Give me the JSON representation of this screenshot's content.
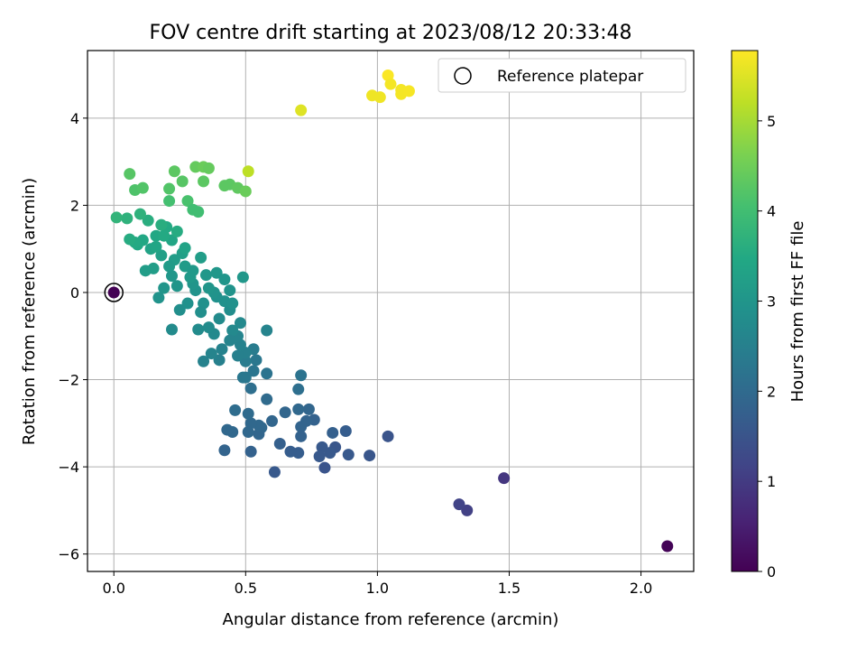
{
  "chart_data": {
    "type": "scatter",
    "title": "FOV centre drift starting at 2023/08/12 20:33:48",
    "xlabel": "Angular distance from reference (arcmin)",
    "ylabel": "Rotation from reference (arcmin)",
    "xlim": [
      -0.1,
      2.2
    ],
    "ylim": [
      -6.4,
      5.55
    ],
    "xticks": [
      0.0,
      0.5,
      1.0,
      1.5,
      2.0
    ],
    "xtick_labels": [
      "0.0",
      "0.5",
      "1.0",
      "1.5",
      "2.0"
    ],
    "yticks": [
      -6,
      -4,
      -2,
      0,
      2,
      4
    ],
    "ytick_labels": [
      "−6",
      "−4",
      "−2",
      "0",
      "2",
      "4"
    ],
    "grid": true,
    "legend": {
      "placement": "top-right",
      "entries": [
        "Reference platepar"
      ]
    },
    "colorbar": {
      "label": "Hours from first FF file",
      "colormap": "viridis",
      "range": [
        0,
        5.78
      ],
      "ticks": [
        0,
        1,
        2,
        3,
        4,
        5
      ],
      "tick_labels": [
        "0",
        "1",
        "2",
        "3",
        "4",
        "5"
      ]
    },
    "reference_point": {
      "x": 0.0,
      "y": 0.0,
      "c": 0.0
    },
    "points": [
      [
        2.1,
        -5.82,
        0.05
      ],
      [
        1.48,
        -4.26,
        0.9
      ],
      [
        1.34,
        -5.0,
        1.1
      ],
      [
        1.31,
        -4.86,
        1.15
      ],
      [
        1.04,
        -3.3,
        1.5
      ],
      [
        0.97,
        -3.74,
        1.55
      ],
      [
        0.89,
        -3.72,
        1.6
      ],
      [
        0.88,
        -3.18,
        1.7
      ],
      [
        0.84,
        -3.55,
        1.55
      ],
      [
        0.83,
        -3.22,
        1.75
      ],
      [
        0.82,
        -3.68,
        1.6
      ],
      [
        0.8,
        -4.02,
        1.5
      ],
      [
        0.79,
        -3.55,
        1.6
      ],
      [
        0.78,
        -3.76,
        1.6
      ],
      [
        0.76,
        -2.92,
        1.8
      ],
      [
        0.74,
        -2.68,
        1.9
      ],
      [
        0.73,
        -2.95,
        1.85
      ],
      [
        0.71,
        -3.08,
        1.85
      ],
      [
        0.71,
        -3.3,
        1.8
      ],
      [
        0.7,
        -3.68,
        1.7
      ],
      [
        0.7,
        -2.68,
        1.95
      ],
      [
        0.7,
        -2.22,
        2.1
      ],
      [
        0.71,
        -1.9,
        2.2
      ],
      [
        0.67,
        -3.65,
        1.7
      ],
      [
        0.65,
        -2.75,
        1.9
      ],
      [
        0.63,
        -3.47,
        1.75
      ],
      [
        0.61,
        -4.12,
        1.6
      ],
      [
        0.6,
        -2.95,
        1.9
      ],
      [
        0.58,
        -2.45,
        2.0
      ],
      [
        0.58,
        -1.86,
        2.2
      ],
      [
        0.58,
        -0.87,
        2.6
      ],
      [
        0.56,
        -3.1,
        1.95
      ],
      [
        0.55,
        -3.25,
        1.9
      ],
      [
        0.55,
        -3.05,
        1.95
      ],
      [
        0.54,
        -1.55,
        2.3
      ],
      [
        0.53,
        -1.3,
        2.4
      ],
      [
        0.53,
        -1.8,
        2.25
      ],
      [
        0.52,
        -2.2,
        2.1
      ],
      [
        0.52,
        -3.0,
        1.95
      ],
      [
        0.52,
        -3.65,
        1.8
      ],
      [
        0.51,
        -2.78,
        2.0
      ],
      [
        0.51,
        -3.2,
        1.95
      ],
      [
        0.5,
        -1.58,
        2.4
      ],
      [
        0.5,
        -1.38,
        2.5
      ],
      [
        0.5,
        -1.95,
        2.3
      ],
      [
        0.49,
        -1.95,
        2.3
      ],
      [
        0.48,
        -0.7,
        2.7
      ],
      [
        0.48,
        -1.2,
        2.55
      ],
      [
        0.47,
        -1.45,
        2.5
      ],
      [
        0.47,
        -1.0,
        2.6
      ],
      [
        0.46,
        -2.7,
        2.05
      ],
      [
        0.45,
        -3.2,
        1.95
      ],
      [
        0.45,
        -0.87,
        2.7
      ],
      [
        0.44,
        -0.4,
        2.8
      ],
      [
        0.44,
        -1.1,
        2.6
      ],
      [
        0.43,
        -3.15,
        1.95
      ],
      [
        0.42,
        -3.62,
        1.85
      ],
      [
        0.42,
        -0.2,
        2.9
      ],
      [
        0.41,
        -1.3,
        2.55
      ],
      [
        0.4,
        -0.6,
        2.75
      ],
      [
        0.4,
        -1.55,
        2.5
      ],
      [
        0.39,
        -0.1,
        2.9
      ],
      [
        0.38,
        0.0,
        2.95
      ],
      [
        0.38,
        -0.95,
        2.7
      ],
      [
        0.37,
        -1.4,
        2.6
      ],
      [
        0.36,
        -0.8,
        2.75
      ],
      [
        0.35,
        0.4,
        3.05
      ],
      [
        0.34,
        -0.25,
        2.9
      ],
      [
        0.34,
        -1.58,
        2.55
      ],
      [
        0.33,
        -0.45,
        2.85
      ],
      [
        0.32,
        -0.85,
        2.75
      ],
      [
        0.31,
        0.05,
        2.95
      ],
      [
        0.3,
        0.2,
        3.0
      ],
      [
        0.29,
        0.35,
        3.1
      ],
      [
        0.28,
        -0.25,
        2.9
      ],
      [
        0.27,
        0.6,
        3.15
      ],
      [
        0.26,
        0.9,
        3.25
      ],
      [
        0.25,
        -0.4,
        2.85
      ],
      [
        0.24,
        0.15,
        3.0
      ],
      [
        0.23,
        0.75,
        3.2
      ],
      [
        0.22,
        -0.85,
        2.75
      ],
      [
        0.22,
        1.2,
        3.4
      ],
      [
        0.21,
        0.6,
        3.15
      ],
      [
        0.2,
        1.5,
        3.5
      ],
      [
        0.19,
        0.1,
        3.0
      ],
      [
        0.18,
        0.85,
        3.25
      ],
      [
        0.17,
        -0.12,
        2.95
      ],
      [
        0.16,
        1.3,
        3.45
      ],
      [
        0.15,
        0.55,
        3.2
      ],
      [
        0.14,
        1.0,
        3.35
      ],
      [
        0.13,
        1.65,
        3.6
      ],
      [
        0.12,
        0.5,
        3.2
      ],
      [
        0.11,
        1.2,
        3.45
      ],
      [
        0.1,
        1.8,
        3.7
      ],
      [
        0.09,
        1.1,
        3.45
      ],
      [
        0.08,
        1.15,
        3.5
      ],
      [
        0.06,
        1.22,
        3.55
      ],
      [
        0.05,
        1.7,
        3.7
      ],
      [
        0.01,
        1.72,
        3.75
      ],
      [
        0.06,
        2.72,
        4.25
      ],
      [
        0.08,
        2.35,
        4.15
      ],
      [
        0.11,
        2.4,
        4.2
      ],
      [
        0.21,
        2.38,
        4.2
      ],
      [
        0.21,
        2.1,
        4.05
      ],
      [
        0.23,
        2.78,
        4.3
      ],
      [
        0.26,
        2.55,
        4.25
      ],
      [
        0.28,
        2.1,
        4.1
      ],
      [
        0.3,
        1.9,
        4.0
      ],
      [
        0.31,
        2.88,
        4.4
      ],
      [
        0.32,
        1.85,
        4.0
      ],
      [
        0.34,
        2.55,
        4.3
      ],
      [
        0.34,
        2.88,
        4.45
      ],
      [
        0.36,
        2.85,
        4.4
      ],
      [
        0.42,
        2.45,
        4.3
      ],
      [
        0.44,
        2.48,
        4.3
      ],
      [
        0.47,
        2.4,
        4.35
      ],
      [
        0.5,
        2.32,
        4.45
      ],
      [
        0.51,
        2.78,
        5.2
      ],
      [
        0.71,
        4.18,
        5.5
      ],
      [
        0.98,
        4.52,
        5.65
      ],
      [
        1.01,
        4.48,
        5.65
      ],
      [
        1.04,
        4.98,
        5.75
      ],
      [
        1.05,
        4.78,
        5.7
      ],
      [
        1.09,
        4.55,
        5.7
      ],
      [
        1.09,
        4.65,
        5.7
      ],
      [
        1.12,
        4.62,
        5.72
      ],
      [
        0.22,
        0.38,
        3.05
      ],
      [
        0.24,
        1.4,
        3.55
      ],
      [
        0.27,
        1.02,
        3.35
      ],
      [
        0.3,
        0.5,
        3.1
      ],
      [
        0.33,
        0.8,
        3.2
      ],
      [
        0.36,
        0.1,
        3.0
      ],
      [
        0.39,
        0.45,
        3.05
      ],
      [
        0.42,
        0.3,
        3.0
      ],
      [
        0.44,
        0.05,
        2.95
      ],
      [
        0.45,
        -0.25,
        2.9
      ],
      [
        0.49,
        0.35,
        3.05
      ],
      [
        0.16,
        1.05,
        3.4
      ],
      [
        0.18,
        1.55,
        3.6
      ],
      [
        0.19,
        1.3,
        3.5
      ]
    ]
  }
}
